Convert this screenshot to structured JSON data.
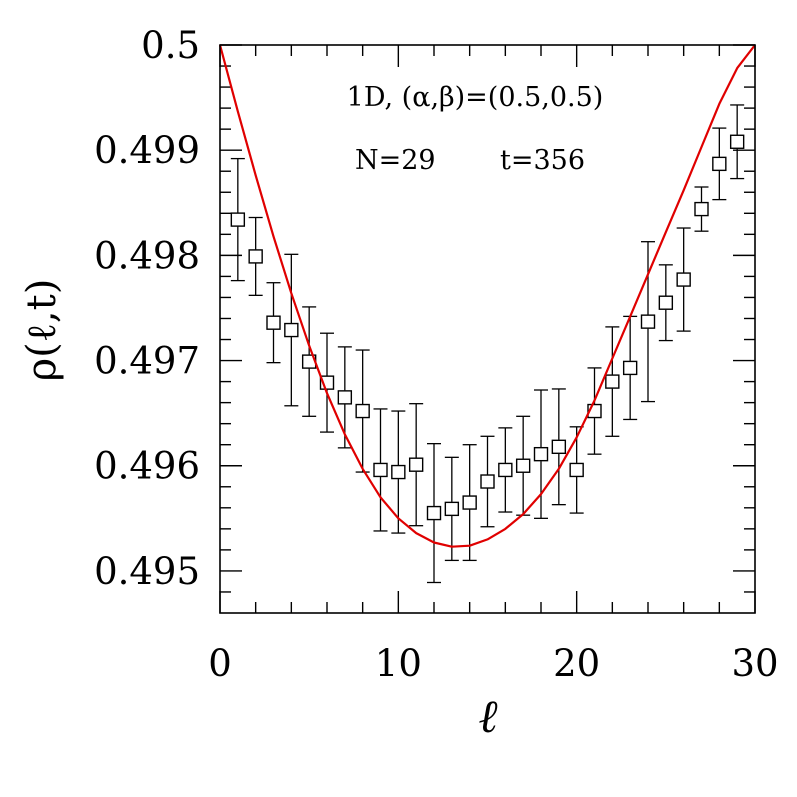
{
  "chart_data": {
    "type": "scatter",
    "title": "",
    "annotations": {
      "line1": "1D, (α,β)=(0.5,0.5)",
      "line2_n": "N=29",
      "line2_t": "t=356"
    },
    "xlabel": "ℓ",
    "ylabel": "ρ(ℓ,t)",
    "xlim": [
      0,
      30
    ],
    "ylim": [
      0.4946,
      0.5
    ],
    "x_ticks": [
      0,
      10,
      20,
      30
    ],
    "x_tick_labels": [
      "0",
      "10",
      "20",
      "30"
    ],
    "y_ticks": [
      0.495,
      0.496,
      0.497,
      0.498,
      0.499,
      0.5
    ],
    "y_tick_labels": [
      "0.495",
      "0.496",
      "0.497",
      "0.498",
      "0.499",
      "0.5"
    ],
    "grid": false,
    "series": [
      {
        "kind": "points-with-errorbars",
        "marker": "open-square",
        "color": "#000000",
        "x": [
          1,
          2,
          3,
          4,
          5,
          6,
          7,
          8,
          9,
          10,
          11,
          12,
          13,
          14,
          15,
          16,
          17,
          18,
          19,
          20,
          21,
          22,
          23,
          24,
          25,
          26,
          27,
          28,
          29
        ],
        "y": [
          0.49834,
          0.49799,
          0.49736,
          0.49729,
          0.49699,
          0.49679,
          0.49665,
          0.49652,
          0.49596,
          0.49594,
          0.49601,
          0.49555,
          0.49559,
          0.49565,
          0.49585,
          0.49596,
          0.496,
          0.49611,
          0.49618,
          0.49596,
          0.49652,
          0.4968,
          0.49693,
          0.49737,
          0.49755,
          0.49777,
          0.49844,
          0.49887,
          0.49908
        ],
        "yerr": [
          0.00058,
          0.00037,
          0.00038,
          0.00072,
          0.00052,
          0.00047,
          0.00048,
          0.00058,
          0.00058,
          0.00058,
          0.00058,
          0.00066,
          0.00049,
          0.00055,
          0.00043,
          0.0004,
          0.00047,
          0.00061,
          0.00055,
          0.00041,
          0.00041,
          0.00052,
          0.00049,
          0.00076,
          0.00036,
          0.00049,
          0.00021,
          0.00034,
          0.00035
        ]
      },
      {
        "kind": "line",
        "color": "#e00000",
        "x": [
          0,
          1,
          2,
          3,
          4,
          5,
          6,
          7,
          8,
          9,
          10,
          11,
          12,
          13,
          14,
          15,
          16,
          17,
          18,
          19,
          20,
          21,
          22,
          23,
          24,
          25,
          26,
          27,
          28,
          29,
          30
        ],
        "y": [
          0.5,
          0.49937,
          0.49876,
          0.49818,
          0.49764,
          0.49714,
          0.49669,
          0.4963,
          0.49597,
          0.4957,
          0.4955,
          0.49536,
          0.49527,
          0.49523,
          0.49524,
          0.4953,
          0.4954,
          0.49554,
          0.49573,
          0.49597,
          0.49627,
          0.49662,
          0.49702,
          0.49742,
          0.49782,
          0.49822,
          0.49862,
          0.49903,
          0.49944,
          0.49978,
          0.5
        ]
      }
    ]
  }
}
